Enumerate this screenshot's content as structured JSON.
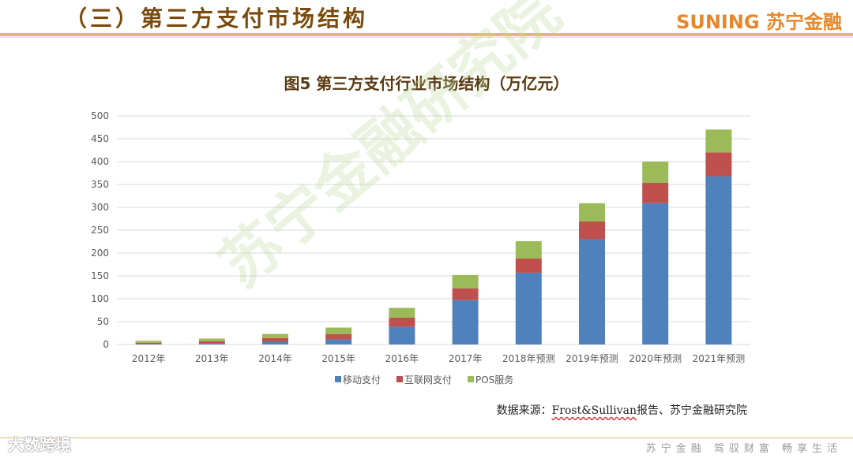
{
  "header": {
    "title": "（三）第三方支付市场结构",
    "brand": "SUNING 苏宁金融"
  },
  "watermark": "苏宁金融研究院",
  "source": {
    "prefix": "数据来源：",
    "english": "Frost&Sullivan",
    "suffix": "报告、苏宁金融研究院"
  },
  "footer": {
    "left": "大数跨境",
    "right": "苏宁金融  驾驭财富  畅享生活"
  },
  "colors": {
    "mobile": "#4f81bd",
    "internet": "#c0504d",
    "pos": "#9bbb59",
    "grid": "#d9d9d9",
    "axis_text": "#595959"
  },
  "chart_data": {
    "type": "bar",
    "stacked": true,
    "title": "图5 第三方支付行业市场结构（万亿元）",
    "xlabel": "",
    "ylabel": "",
    "ylim": [
      0,
      500
    ],
    "yticks": [
      0,
      50,
      100,
      150,
      200,
      250,
      300,
      350,
      400,
      450,
      500
    ],
    "grid": true,
    "legend_position": "bottom",
    "categories": [
      "2012年",
      "2013年",
      "2014年",
      "2015年",
      "2016年",
      "2017年",
      "2018年预测",
      "2019年预测",
      "2020年预测",
      "2021年预测"
    ],
    "series": [
      {
        "name": "移动支付",
        "values": [
          1,
          2,
          6,
          11,
          39,
          97,
          157,
          231,
          309,
          368
        ]
      },
      {
        "name": "互联网支付",
        "values": [
          3,
          5,
          8,
          12,
          20,
          26,
          31,
          38,
          45,
          52
        ]
      },
      {
        "name": "POS服务",
        "values": [
          4,
          6,
          9,
          14,
          21,
          29,
          38,
          40,
          46,
          50
        ]
      }
    ]
  }
}
